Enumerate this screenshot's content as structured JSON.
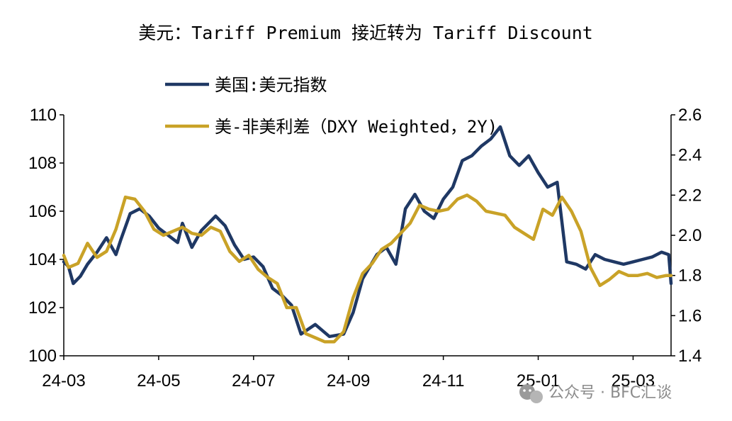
{
  "chart_data": {
    "type": "line",
    "title": "美元：Tariff Premium 接近转为 Tariff Discount",
    "x_tick_labels": [
      "24-03",
      "24-05",
      "24-07",
      "24-09",
      "24-11",
      "25-01",
      "25-03"
    ],
    "x_range_months": [
      0,
      12.8
    ],
    "y_left": {
      "ylim": [
        100,
        110
      ],
      "ticks": [
        "100",
        "102",
        "104",
        "106",
        "108",
        "110"
      ]
    },
    "y_right": {
      "ylim": [
        1.4,
        2.6
      ],
      "ticks": [
        "1.4",
        "1.6",
        "1.8",
        "2.0",
        "2.2",
        "2.4",
        "2.6"
      ]
    },
    "legend": {
      "placement": "top-center",
      "entries": [
        "美国:美元指数",
        "美-非美利差（DXY Weighted，2Y)"
      ]
    },
    "series": [
      {
        "name": "美国:美元指数",
        "axis": "left",
        "color": "#1f3864",
        "x": [
          0.0,
          0.1,
          0.2,
          0.35,
          0.5,
          0.7,
          0.9,
          1.1,
          1.2,
          1.4,
          1.6,
          1.8,
          2.0,
          2.2,
          2.4,
          2.5,
          2.7,
          2.9,
          3.0,
          3.2,
          3.4,
          3.6,
          3.8,
          4.0,
          4.2,
          4.4,
          4.6,
          4.8,
          5.0,
          5.3,
          5.6,
          5.9,
          6.1,
          6.3,
          6.6,
          6.8,
          7.0,
          7.2,
          7.4,
          7.6,
          7.8,
          8.0,
          8.2,
          8.4,
          8.6,
          8.8,
          9.0,
          9.2,
          9.4,
          9.6,
          9.8,
          10.0,
          10.2,
          10.4,
          10.6,
          10.8,
          11.0,
          11.2,
          11.4,
          11.6,
          11.8,
          12.0,
          12.2,
          12.4,
          12.6,
          12.75,
          12.8
        ],
        "values": [
          103.9,
          103.7,
          103.0,
          103.3,
          103.8,
          104.3,
          104.9,
          104.2,
          104.8,
          105.9,
          106.1,
          105.8,
          105.3,
          105.0,
          104.7,
          105.5,
          104.5,
          105.2,
          105.4,
          105.8,
          105.4,
          104.6,
          104.0,
          104.1,
          103.7,
          102.8,
          102.5,
          102.1,
          100.9,
          101.3,
          100.8,
          100.9,
          101.8,
          103.2,
          104.2,
          104.5,
          103.8,
          106.1,
          106.7,
          106.0,
          105.7,
          106.5,
          107.0,
          108.1,
          108.3,
          108.7,
          109.0,
          109.5,
          108.3,
          107.9,
          108.3,
          107.6,
          107.0,
          107.2,
          103.9,
          103.8,
          103.6,
          104.2,
          104.0,
          103.9,
          103.8,
          103.9,
          104.0,
          104.1,
          104.3,
          104.2,
          103.0
        ]
      },
      {
        "name": "美-非美利差（DXY Weighted，2Y)",
        "axis": "right",
        "color": "#c9a227",
        "x": [
          0.0,
          0.1,
          0.3,
          0.5,
          0.7,
          0.9,
          1.1,
          1.3,
          1.5,
          1.7,
          1.9,
          2.1,
          2.3,
          2.5,
          2.7,
          2.9,
          3.1,
          3.3,
          3.5,
          3.7,
          3.9,
          4.1,
          4.3,
          4.5,
          4.7,
          4.9,
          5.1,
          5.3,
          5.5,
          5.7,
          5.9,
          6.1,
          6.3,
          6.5,
          6.7,
          6.9,
          7.1,
          7.3,
          7.5,
          7.7,
          7.9,
          8.1,
          8.3,
          8.5,
          8.7,
          8.9,
          9.1,
          9.3,
          9.5,
          9.7,
          9.9,
          10.1,
          10.3,
          10.5,
          10.7,
          10.9,
          11.1,
          11.3,
          11.5,
          11.7,
          11.9,
          12.1,
          12.3,
          12.5,
          12.7,
          12.8
        ],
        "values": [
          1.9,
          1.84,
          1.86,
          1.96,
          1.89,
          1.92,
          2.03,
          2.19,
          2.18,
          2.12,
          2.03,
          2.0,
          2.02,
          2.04,
          2.01,
          2.0,
          2.04,
          2.02,
          1.92,
          1.87,
          1.9,
          1.83,
          1.79,
          1.76,
          1.64,
          1.64,
          1.51,
          1.49,
          1.47,
          1.47,
          1.52,
          1.69,
          1.81,
          1.86,
          1.93,
          1.96,
          2.01,
          2.06,
          2.15,
          2.13,
          2.12,
          2.13,
          2.18,
          2.2,
          2.17,
          2.12,
          2.11,
          2.1,
          2.04,
          2.01,
          1.98,
          2.13,
          2.1,
          2.19,
          2.12,
          2.02,
          1.84,
          1.75,
          1.78,
          1.82,
          1.8,
          1.8,
          1.81,
          1.79,
          1.8,
          1.8
        ]
      }
    ]
  },
  "watermark": {
    "icon": "wechat-icon",
    "text": "公众号 · BFC汇谈"
  }
}
